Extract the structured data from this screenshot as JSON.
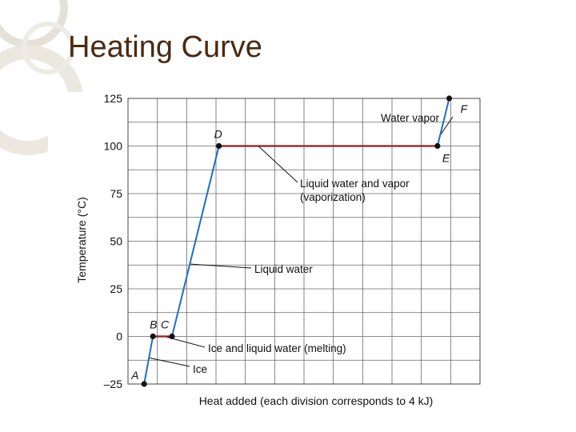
{
  "slide": {
    "title": "Heating Curve"
  },
  "colors": {
    "title": "#4a2a12",
    "heating_segment": "#1f6fbf",
    "plateau_segment": "#9b1b1b",
    "grid": "#666666",
    "decoration_rings": "#d9d3c7"
  },
  "chart_data": {
    "type": "line",
    "title": "",
    "xlabel": "Heat added (each division corresponds to 4 kJ)",
    "ylabel": "Temperature (°C)",
    "x_unit": "kJ",
    "xlim": [
      0,
      48
    ],
    "ylim": [
      -25,
      125
    ],
    "grid": true,
    "yticks": [
      {
        "value": -25,
        "label": "–25"
      },
      {
        "value": 0,
        "label": "0"
      },
      {
        "value": 25,
        "label": "25"
      },
      {
        "value": 50,
        "label": "50"
      },
      {
        "value": 75,
        "label": "75"
      },
      {
        "value": 100,
        "label": "100"
      },
      {
        "value": 125,
        "label": "125"
      }
    ],
    "x_divisions_kj": 4,
    "points": [
      {
        "label": "A",
        "x": 2.2,
        "y": -25
      },
      {
        "label": "B",
        "x": 3.4,
        "y": 0
      },
      {
        "label": "C",
        "x": 6.0,
        "y": 0
      },
      {
        "label": "D",
        "x": 12.4,
        "y": 100
      },
      {
        "label": "E",
        "x": 42.2,
        "y": 100
      },
      {
        "label": "F",
        "x": 43.8,
        "y": 125
      }
    ],
    "segments": [
      {
        "from": "A",
        "to": "B",
        "annotation": "Ice",
        "kind": "heating"
      },
      {
        "from": "B",
        "to": "C",
        "annotation": "Ice and liquid water (melting)",
        "kind": "plateau"
      },
      {
        "from": "C",
        "to": "D",
        "annotation": "Liquid water",
        "kind": "heating"
      },
      {
        "from": "D",
        "to": "E",
        "annotation": "Liquid water and vapor (vaporization)",
        "kind": "plateau"
      },
      {
        "from": "E",
        "to": "F",
        "annotation": "Water vapor",
        "kind": "heating"
      }
    ],
    "annotations": {
      "ice": "Ice",
      "melting": "Ice and liquid water (melting)",
      "liquid": "Liquid water",
      "vaporization_line1": "Liquid water and vapor",
      "vaporization_line2": "(vaporization)",
      "vapor": "Water vapor"
    }
  }
}
